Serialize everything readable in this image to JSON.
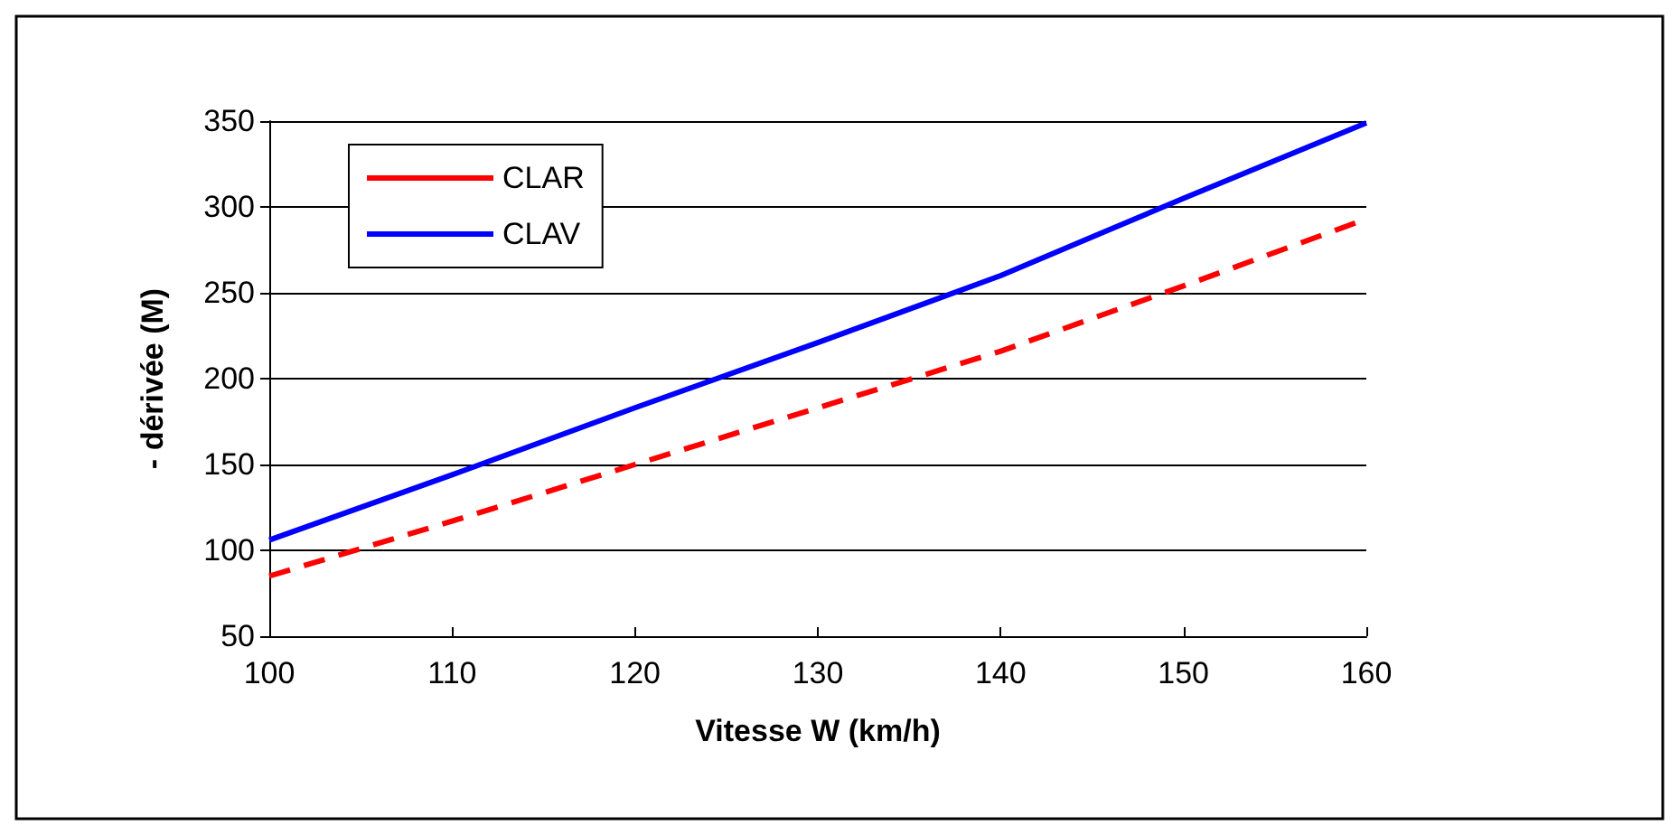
{
  "chart_data": {
    "type": "line",
    "xlabel": "Vitesse W (km/h)",
    "ylabel": "- dérivée (M)",
    "x": [
      100,
      110,
      120,
      130,
      140,
      150,
      160
    ],
    "series": [
      {
        "name": "CLAR",
        "color": "#ff0000",
        "line_style": "dashed",
        "values": [
          85,
          117,
          150,
          183,
          216,
          254,
          293
        ]
      },
      {
        "name": "CLAV",
        "color": "#0000ff",
        "line_style": "solid",
        "values": [
          106,
          144,
          183,
          221,
          260,
          305,
          349
        ]
      }
    ],
    "xlim": [
      100,
      160
    ],
    "xticks": [
      100,
      110,
      120,
      130,
      140,
      150,
      160
    ],
    "ylim": [
      50,
      350
    ],
    "yticks": [
      50,
      100,
      150,
      200,
      250,
      300,
      350
    ],
    "grid": "y",
    "legend": "top left",
    "marker": "none"
  }
}
